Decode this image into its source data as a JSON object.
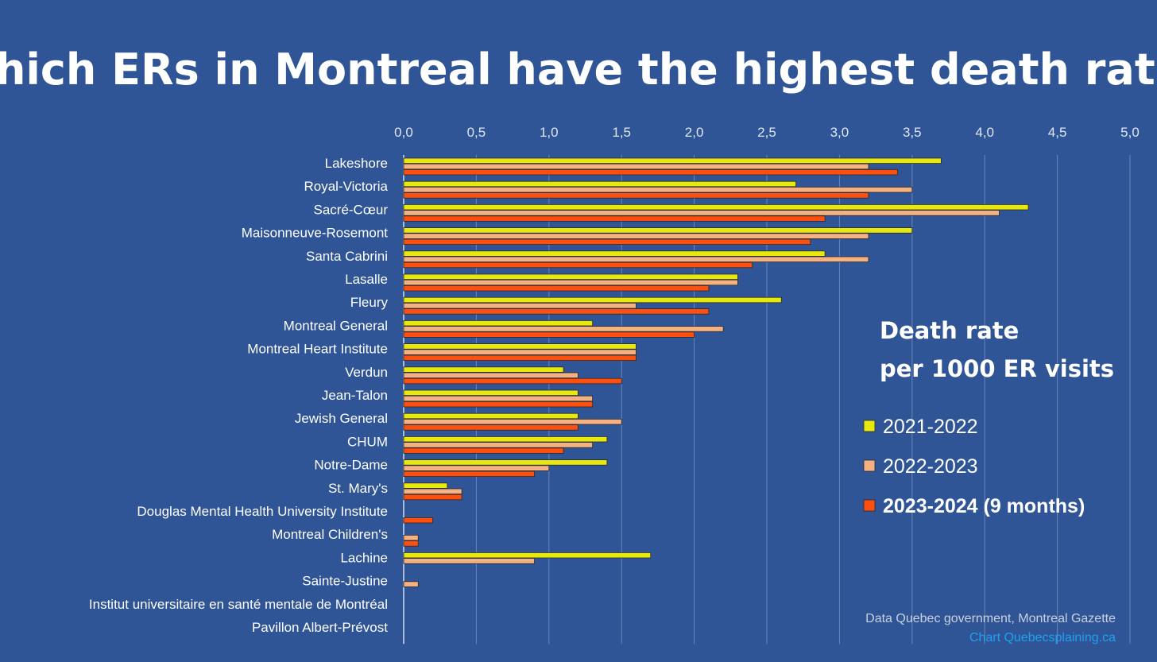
{
  "chart_data": {
    "type": "bar",
    "orientation": "horizontal",
    "title": "Which ERs in Montreal have the highest death rate?",
    "xlim": [
      0,
      5
    ],
    "x_ticks": [
      "0,0",
      "0,5",
      "1,0",
      "1,5",
      "2,0",
      "2,5",
      "3,0",
      "3,5",
      "4,0",
      "4,5",
      "5,0"
    ],
    "x_tick_values": [
      0,
      0.5,
      1,
      1.5,
      2,
      2.5,
      3,
      3.5,
      4,
      4.5,
      5
    ],
    "grid": true,
    "legend_position": "right",
    "legend_title": "Death rate\nper 1000 ER visits",
    "categories": [
      "Lakeshore",
      "Royal-Victoria",
      "Sacré-Cœur",
      "Maisonneuve-Rosemont",
      "Santa Cabrini",
      "Lasalle",
      "Fleury",
      "Montreal General",
      "Montreal Heart Institute",
      "Verdun",
      "Jean-Talon",
      "Jewish General",
      "CHUM",
      "Notre-Dame",
      "St. Mary's",
      "Douglas Mental Health University Institute",
      "Montreal Children's",
      "Lachine",
      "Sainte-Justine",
      "Institut universitaire en santé mentale de Montréal",
      "Pavillon Albert-Prévost"
    ],
    "series": [
      {
        "name": "2021-2022",
        "color": "#e8e80c",
        "values": [
          3.7,
          2.7,
          4.3,
          3.5,
          2.9,
          2.3,
          2.6,
          1.3,
          1.6,
          1.1,
          1.2,
          1.2,
          1.4,
          1.4,
          0.3,
          0,
          0,
          1.7,
          0,
          0,
          0
        ]
      },
      {
        "name": "2022-2023",
        "color": "#f4b183",
        "values": [
          3.2,
          3.5,
          4.1,
          3.2,
          3.2,
          2.3,
          1.6,
          2.2,
          1.6,
          1.2,
          1.3,
          1.5,
          1.3,
          1.0,
          0.4,
          0,
          0.1,
          0.9,
          0.1,
          0,
          0
        ]
      },
      {
        "name": "2023-2024 (9 months)",
        "color": "#ff4f0f",
        "bold": true,
        "values": [
          3.4,
          3.2,
          2.9,
          2.8,
          2.4,
          2.1,
          2.1,
          2.0,
          1.6,
          1.5,
          1.3,
          1.2,
          1.1,
          0.9,
          0.4,
          0.2,
          0.1,
          0,
          0,
          0,
          0
        ]
      }
    ]
  },
  "source": {
    "data_line": "Data Quebec government, Montreal Gazette",
    "credit_line": "Chart Quebecsplaining.ca"
  },
  "colors": {
    "background": "#2f5597",
    "gridline": "#6a86b8",
    "bar_outline": "#2a2a2a"
  }
}
